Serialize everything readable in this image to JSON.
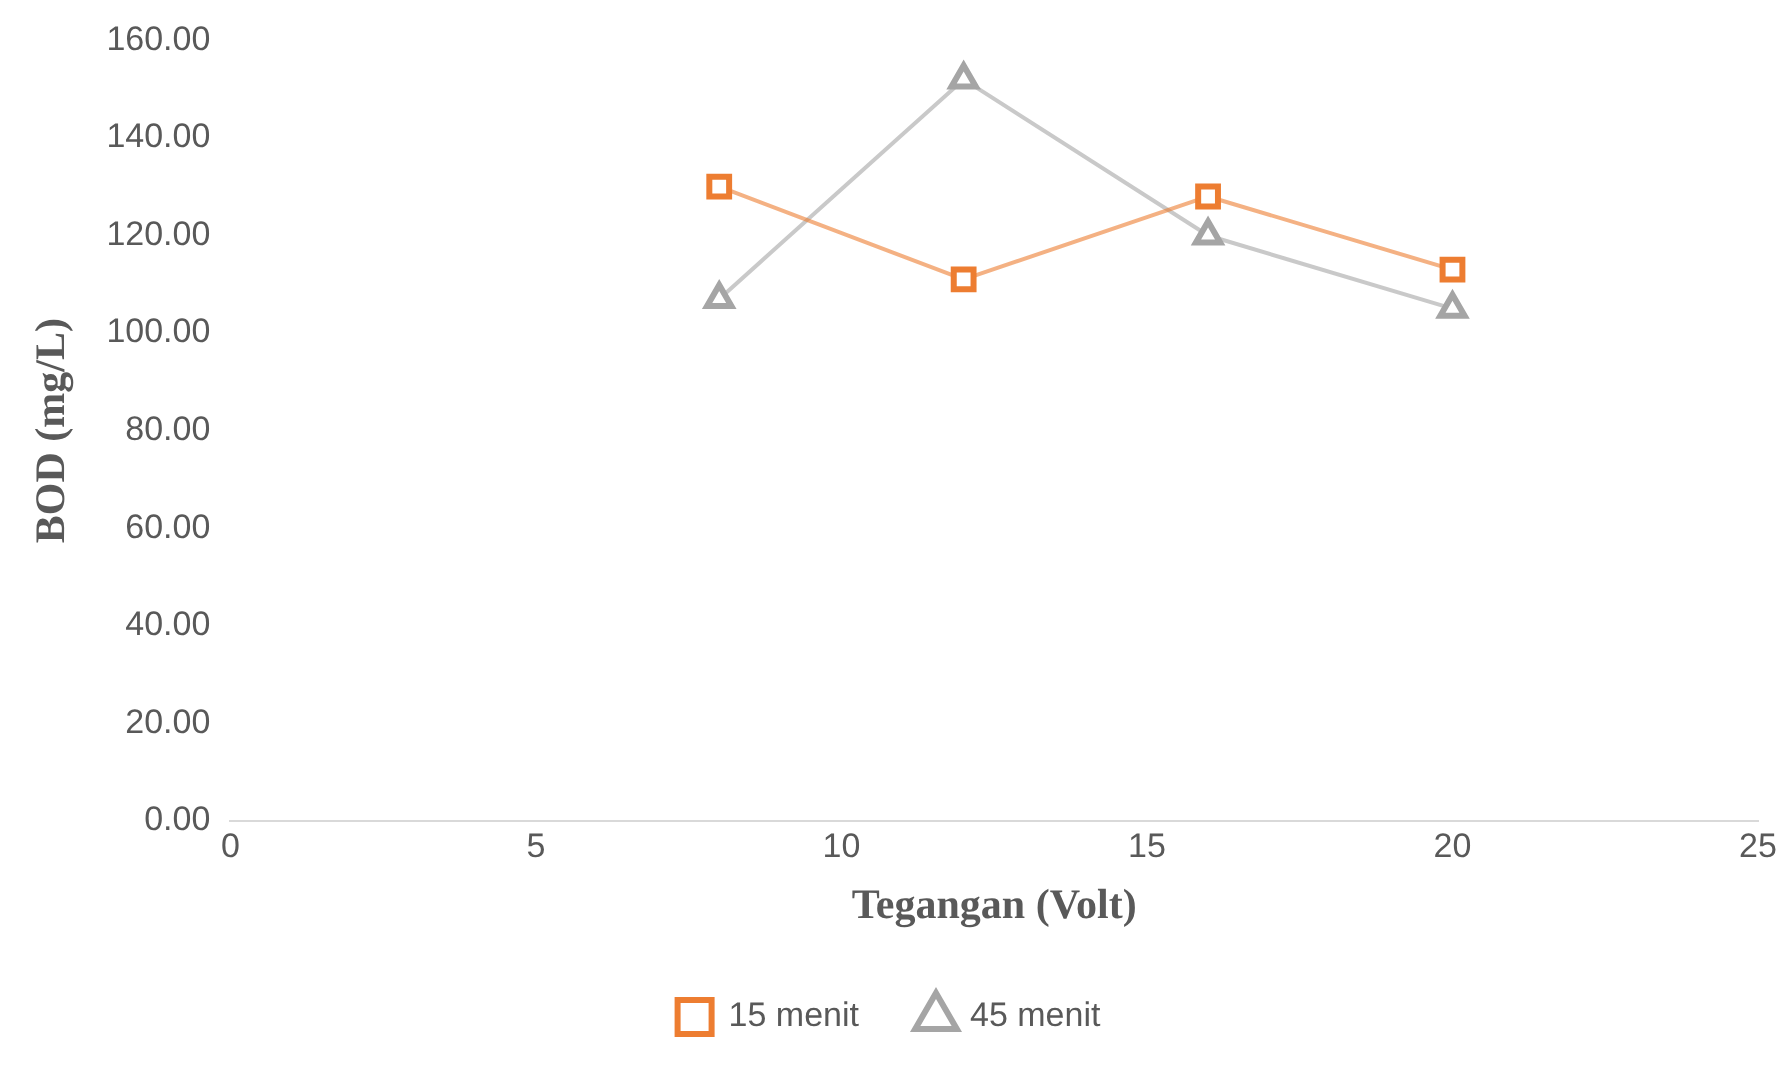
{
  "chart_data": {
    "type": "line",
    "xlabel": "Tegangan (Volt)",
    "ylabel": "BOD (mg/L)",
    "xlim": [
      0,
      25
    ],
    "xticks": [
      0,
      5,
      10,
      15,
      20,
      25
    ],
    "ylim": [
      0,
      160
    ],
    "yticks": [
      {
        "value": 0,
        "label": "0.00"
      },
      {
        "value": 20,
        "label": "20.00"
      },
      {
        "value": 40,
        "label": "40.00"
      },
      {
        "value": 60,
        "label": "60.00"
      },
      {
        "value": 80,
        "label": "80.00"
      },
      {
        "value": 100,
        "label": "100.00"
      },
      {
        "value": 120,
        "label": "120.00"
      },
      {
        "value": 140,
        "label": "140.00"
      },
      {
        "value": 160,
        "label": "160.00"
      }
    ],
    "grid": false,
    "legend": "bottom",
    "line_style": "solid",
    "series": [
      {
        "name": "15 menit",
        "color": "#ed7d31",
        "marker": "square",
        "x": [
          8,
          12,
          16,
          20
        ],
        "values": [
          130,
          111,
          128,
          113
        ]
      },
      {
        "name": "45 menit",
        "color": "#a5a5a5",
        "marker": "triangle",
        "x": [
          8,
          12,
          16,
          20
        ],
        "values": [
          107,
          152,
          120,
          105
        ]
      }
    ]
  }
}
